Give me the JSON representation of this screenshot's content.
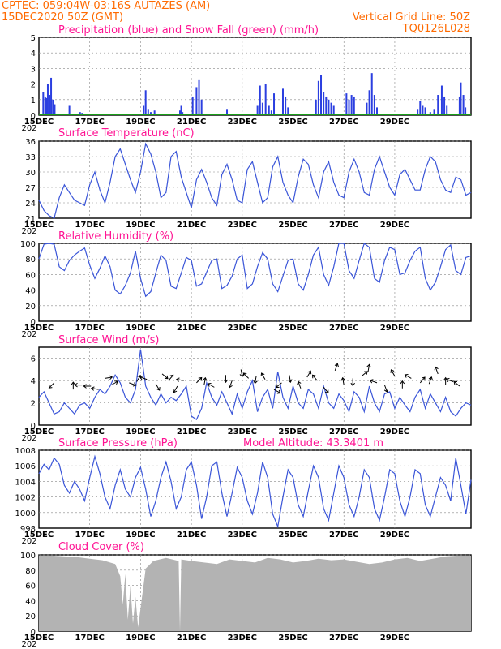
{
  "header": {
    "line1": "CPTEC:   059:04W-03:16S   AUTAZES (AM)",
    "line2": "15DEC2020 50Z (GMT)",
    "vertical_grid": "Vertical Grid Line: 50Z",
    "code": "TQ0126L028"
  },
  "x_axis": {
    "labels": [
      "15DEC",
      "17DEC",
      "19DEC",
      "21DEC",
      "23DEC",
      "25DEC",
      "27DEC",
      "29DEC"
    ],
    "year_stub": "202"
  },
  "chart_data": [
    {
      "type": "bar",
      "title": "Precipitation (blue) and Snow Fall (green) (mm/h)",
      "ylim": [
        0,
        5
      ],
      "yticks": [
        "0",
        "1",
        "2",
        "3",
        "4",
        "5"
      ],
      "colors": {
        "rain": "#2b3fe0",
        "snow": "#1a9e1a"
      },
      "x_days": [
        0.17,
        0.25,
        0.3,
        0.35,
        0.42,
        0.48,
        0.55,
        0.62,
        1.2,
        1.62,
        1.7,
        1.8,
        4.12,
        4.2,
        4.3,
        4.4,
        4.55,
        5.55,
        5.6,
        5.65,
        6.05,
        6.2,
        6.3,
        6.4,
        7.4,
        8.6,
        8.7,
        8.8,
        8.92,
        9.05,
        9.15,
        9.25,
        9.6,
        9.7,
        9.8,
        10.9,
        11.0,
        11.1,
        11.2,
        11.3,
        11.4,
        11.5,
        11.6,
        12.1,
        12.2,
        12.3,
        12.4,
        12.9,
        13.0,
        13.1,
        13.2,
        13.3,
        14.9,
        15.0,
        15.1,
        15.2,
        15.4,
        15.55,
        15.7,
        15.85,
        15.95,
        16.05,
        16.55,
        16.6,
        16.7,
        16.78
      ],
      "values": [
        1.5,
        1.2,
        1.1,
        2.0,
        1.3,
        2.4,
        1.0,
        0.7,
        0.6,
        0.2,
        0.15,
        0.1,
        0.6,
        1.6,
        0.4,
        0.2,
        0.3,
        0.3,
        0.6,
        0.2,
        1.2,
        1.8,
        2.3,
        1.0,
        0.4,
        0.6,
        1.9,
        0.8,
        2.0,
        0.6,
        0.3,
        1.4,
        1.7,
        1.2,
        0.5,
        1.0,
        2.2,
        2.6,
        1.5,
        1.2,
        1.0,
        0.8,
        0.6,
        1.4,
        1.0,
        1.3,
        1.2,
        0.8,
        1.6,
        2.7,
        1.3,
        0.5,
        0.4,
        0.9,
        0.6,
        0.5,
        0.2,
        0.4,
        1.3,
        1.9,
        1.2,
        0.6,
        1.2,
        2.1,
        1.3,
        0.5
      ],
      "snow_values": [
        0
      ]
    },
    {
      "type": "line",
      "title": "Surface Temperature (nC)",
      "ylim": [
        21,
        36
      ],
      "yticks": [
        "21",
        "24",
        "27",
        "30",
        "33",
        "36"
      ],
      "x_days": [
        0,
        0.2,
        0.4,
        0.6,
        0.8,
        1.0,
        1.2,
        1.4,
        1.6,
        1.8,
        2.0,
        2.2,
        2.4,
        2.6,
        2.8,
        3.0,
        3.2,
        3.4,
        3.6,
        3.8,
        4.0,
        4.2,
        4.4,
        4.6,
        4.8,
        5.0,
        5.2,
        5.4,
        5.6,
        5.8,
        6.0,
        6.2,
        6.4,
        6.6,
        6.8,
        7.0,
        7.2,
        7.4,
        7.6,
        7.8,
        8.0,
        8.2,
        8.4,
        8.6,
        8.8,
        9.0,
        9.2,
        9.4,
        9.6,
        9.8,
        10.0,
        10.2,
        10.4,
        10.6,
        10.8,
        11.0,
        11.2,
        11.4,
        11.6,
        11.8,
        12.0,
        12.2,
        12.4,
        12.6,
        12.8,
        13.0,
        13.2,
        13.4,
        13.6,
        13.8,
        14.0,
        14.2,
        14.4,
        14.6,
        14.8,
        15.0,
        15.2,
        15.4,
        15.6,
        15.8,
        16.0,
        16.2,
        16.4,
        16.6,
        16.8,
        17.0
      ],
      "values": [
        24.5,
        22.5,
        21.5,
        21.0,
        25.0,
        27.5,
        26.0,
        24.5,
        24.0,
        23.5,
        27.5,
        30.0,
        26.5,
        24.0,
        28.0,
        33.0,
        34.5,
        31.5,
        28.5,
        26.0,
        30.0,
        35.5,
        33.5,
        30.0,
        25.0,
        26.0,
        33.0,
        34.0,
        29.0,
        26.0,
        23.0,
        28.5,
        30.5,
        28.0,
        25.0,
        23.5,
        29.5,
        31.5,
        28.5,
        24.5,
        24.0,
        30.5,
        32.0,
        28.0,
        24.0,
        25.0,
        31.0,
        33.0,
        28.0,
        25.5,
        24.0,
        29.0,
        32.5,
        31.5,
        27.5,
        25.0,
        30.0,
        32.0,
        28.0,
        25.5,
        25.0,
        30.0,
        32.5,
        30.0,
        26.0,
        25.5,
        30.5,
        33.0,
        30.0,
        27.0,
        25.5,
        29.5,
        30.5,
        28.5,
        26.5,
        26.5,
        30.5,
        33.0,
        32.0,
        28.5,
        26.5,
        26.0,
        29.0,
        28.5,
        25.5,
        26.0
      ]
    },
    {
      "type": "line",
      "title": "Relative Humidity (%)",
      "ylim": [
        0,
        100
      ],
      "yticks": [
        "0",
        "20",
        "40",
        "60",
        "80",
        "100"
      ],
      "x_days": [
        0,
        0.2,
        0.4,
        0.6,
        0.8,
        1.0,
        1.2,
        1.4,
        1.6,
        1.8,
        2.0,
        2.2,
        2.4,
        2.6,
        2.8,
        3.0,
        3.2,
        3.4,
        3.6,
        3.8,
        4.0,
        4.2,
        4.4,
        4.6,
        4.8,
        5.0,
        5.2,
        5.4,
        5.6,
        5.8,
        6.0,
        6.2,
        6.4,
        6.6,
        6.8,
        7.0,
        7.2,
        7.4,
        7.6,
        7.8,
        8.0,
        8.2,
        8.4,
        8.6,
        8.8,
        9.0,
        9.2,
        9.4,
        9.6,
        9.8,
        10.0,
        10.2,
        10.4,
        10.6,
        10.8,
        11.0,
        11.2,
        11.4,
        11.6,
        11.8,
        12.0,
        12.2,
        12.4,
        12.6,
        12.8,
        13.0,
        13.2,
        13.4,
        13.6,
        13.8,
        14.0,
        14.2,
        14.4,
        14.6,
        14.8,
        15.0,
        15.2,
        15.4,
        15.6,
        15.8,
        16.0,
        16.2,
        16.4,
        16.6,
        16.8,
        17.0
      ],
      "values": [
        80,
        99,
        100,
        99,
        70,
        65,
        78,
        85,
        90,
        94,
        72,
        55,
        68,
        84,
        70,
        40,
        35,
        46,
        62,
        90,
        55,
        32,
        38,
        62,
        85,
        78,
        45,
        42,
        62,
        82,
        78,
        45,
        48,
        63,
        78,
        80,
        42,
        46,
        58,
        80,
        85,
        42,
        48,
        70,
        88,
        80,
        48,
        38,
        58,
        78,
        80,
        48,
        40,
        60,
        85,
        95,
        60,
        46,
        70,
        100,
        100,
        65,
        55,
        78,
        100,
        95,
        55,
        50,
        78,
        95,
        92,
        60,
        62,
        78,
        90,
        95,
        55,
        40,
        50,
        70,
        92,
        98,
        65,
        60,
        82,
        84
      ]
    },
    {
      "type": "line",
      "title": "Surface Wind (m/s)",
      "ylim": [
        0,
        7
      ],
      "yticks": [
        "0",
        "2",
        "4",
        "6"
      ],
      "x_days": [
        0,
        0.2,
        0.4,
        0.6,
        0.8,
        1.0,
        1.2,
        1.4,
        1.6,
        1.8,
        2.0,
        2.2,
        2.4,
        2.6,
        2.8,
        3.0,
        3.2,
        3.4,
        3.6,
        3.8,
        4.0,
        4.2,
        4.4,
        4.6,
        4.8,
        5.0,
        5.2,
        5.4,
        5.6,
        5.8,
        6.0,
        6.2,
        6.4,
        6.6,
        6.8,
        7.0,
        7.2,
        7.4,
        7.6,
        7.8,
        8.0,
        8.2,
        8.4,
        8.6,
        8.8,
        9.0,
        9.2,
        9.4,
        9.6,
        9.8,
        10.0,
        10.2,
        10.4,
        10.6,
        10.8,
        11.0,
        11.2,
        11.4,
        11.6,
        11.8,
        12.0,
        12.2,
        12.4,
        12.6,
        12.8,
        13.0,
        13.2,
        13.4,
        13.6,
        13.8,
        14.0,
        14.2,
        14.4,
        14.6,
        14.8,
        15.0,
        15.2,
        15.4,
        15.6,
        15.8,
        16.0,
        16.2,
        16.4,
        16.6,
        16.8,
        17.0
      ],
      "values": [
        2.5,
        3.0,
        2.0,
        1.0,
        1.2,
        2.0,
        1.5,
        1.0,
        1.8,
        2.0,
        1.5,
        2.5,
        3.2,
        2.8,
        3.5,
        4.5,
        3.8,
        2.5,
        2.0,
        3.2,
        6.8,
        3.5,
        2.5,
        1.8,
        2.8,
        2.0,
        2.5,
        2.2,
        2.8,
        3.5,
        0.8,
        0.5,
        1.5,
        3.8,
        2.5,
        1.8,
        3.0,
        2.0,
        1.0,
        2.8,
        1.5,
        3.0,
        4.0,
        1.2,
        2.5,
        3.2,
        1.5,
        4.8,
        2.5,
        1.5,
        3.5,
        2.0,
        1.5,
        3.2,
        2.8,
        1.5,
        3.5,
        2.0,
        1.5,
        2.8,
        2.2,
        1.2,
        3.0,
        2.5,
        1.2,
        3.5,
        2.0,
        1.2,
        2.8,
        3.0,
        1.5,
        2.5,
        1.8,
        1.2,
        2.5,
        3.2,
        1.5,
        2.8,
        2.0,
        1.2,
        2.5,
        1.2,
        0.8,
        1.5,
        2.0,
        1.8
      ],
      "arrows": {
        "x_days": [
          0.6,
          1.35,
          1.7,
          2.05,
          2.35,
          2.6,
          2.85,
          3.55,
          3.85,
          4.25,
          4.6,
          4.85,
          5.1,
          5.45,
          5.7,
          6.2,
          6.5,
          6.9,
          7.35,
          7.6,
          7.95,
          8.25,
          8.55,
          8.9,
          9.25,
          9.55,
          9.85,
          10.3,
          10.55,
          10.95,
          11.2,
          11.65,
          12.0,
          12.35,
          12.7,
          12.95,
          13.3,
          13.6,
          14.0,
          14.3,
          14.65,
          15.0,
          15.35,
          15.7,
          16.0,
          16.3,
          16.55
        ],
        "levels": [
          3.8,
          3.2,
          3.6,
          3.5,
          3.2,
          4.2,
          3.6,
          3.8,
          3.9,
          4.1,
          3.7,
          4.6,
          4.0,
          3.5,
          4.0,
          3.8,
          3.6,
          3.4,
          4.5,
          4.0,
          5.0,
          4.2,
          4.4,
          4.1,
          3.2,
          3.8,
          4.5,
          3.3,
          4.3,
          4.0,
          3.4,
          4.9,
          3.6,
          4.2,
          4.4,
          4.8,
          3.8,
          3.6,
          4.4,
          3.3,
          4.2,
          3.8,
          3.7,
          4.6,
          3.6,
          3.9,
          3.5
        ],
        "directions": [
          -135,
          90,
          180,
          180,
          170,
          10,
          30,
          -20,
          60,
          160,
          -60,
          -40,
          50,
          -120,
          170,
          45,
          80,
          150,
          -90,
          -110,
          -80,
          135,
          -100,
          120,
          -30,
          -140,
          -80,
          110,
          60,
          130,
          -50,
          70,
          100,
          -90,
          40,
          80,
          160,
          -70,
          120,
          90,
          150,
          50,
          70,
          110,
          90,
          160,
          140
        ]
      }
    },
    {
      "type": "line",
      "title": "Surface Pressure (hPa)",
      "annotation": "Model Altitude: 43.3401 m",
      "ylim": [
        998,
        1008
      ],
      "yticks": [
        "998",
        "1000",
        "1002",
        "1004",
        "1006",
        "1008"
      ],
      "x_days": [
        0,
        0.2,
        0.4,
        0.6,
        0.8,
        1.0,
        1.2,
        1.4,
        1.6,
        1.8,
        2.0,
        2.2,
        2.4,
        2.6,
        2.8,
        3.0,
        3.2,
        3.4,
        3.6,
        3.8,
        4.0,
        4.2,
        4.4,
        4.6,
        4.8,
        5.0,
        5.2,
        5.4,
        5.6,
        5.8,
        6.0,
        6.2,
        6.4,
        6.6,
        6.8,
        7.0,
        7.2,
        7.4,
        7.6,
        7.8,
        8.0,
        8.2,
        8.4,
        8.6,
        8.8,
        9.0,
        9.2,
        9.4,
        9.6,
        9.8,
        10.0,
        10.2,
        10.4,
        10.6,
        10.8,
        11.0,
        11.2,
        11.4,
        11.6,
        11.8,
        12.0,
        12.2,
        12.4,
        12.6,
        12.8,
        13.0,
        13.2,
        13.4,
        13.6,
        13.8,
        14.0,
        14.2,
        14.4,
        14.6,
        14.8,
        15.0,
        15.2,
        15.4,
        15.6,
        15.8,
        16.0,
        16.2,
        16.4,
        16.6,
        16.8,
        17.0
      ],
      "values": [
        1005,
        1006.2,
        1005.5,
        1007,
        1006.2,
        1003.5,
        1002.5,
        1004,
        1003,
        1001.5,
        1004.5,
        1007.2,
        1005,
        1002,
        1000.5,
        1003.5,
        1005.5,
        1003,
        1002,
        1004.5,
        1005.8,
        1003,
        999.5,
        1001.5,
        1004.5,
        1006.5,
        1004,
        1000.5,
        1002,
        1005.5,
        1006.5,
        1003.5,
        999.2,
        1002,
        1006,
        1006.5,
        1002.5,
        999.5,
        1002.5,
        1005.8,
        1004.5,
        1001.5,
        999.8,
        1002.5,
        1006.5,
        1004.5,
        999.8,
        998.2,
        1002,
        1005.5,
        1004.5,
        1001,
        999.5,
        1002.8,
        1006,
        1004.5,
        1000.5,
        999,
        1002.5,
        1006,
        1004.5,
        1001,
        999.5,
        1002,
        1005.5,
        1004.5,
        1000.5,
        999,
        1002,
        1005.5,
        1005,
        1001.5,
        999.5,
        1002,
        1005.5,
        1005,
        1001,
        999.5,
        1002,
        1004.5,
        1003.5,
        1001.5,
        1007,
        1003.5,
        999.8,
        1004.2
      ]
    },
    {
      "type": "area",
      "title": "Cloud Cover (%)",
      "ylim": [
        0,
        100
      ],
      "yticks": [
        "0",
        "20",
        "40",
        "60",
        "80",
        "100"
      ],
      "colors": {
        "fill": "#b3b3b3"
      },
      "x_days": [
        0,
        0.5,
        1.0,
        1.5,
        2.0,
        2.5,
        2.8,
        3.0,
        3.1,
        3.2,
        3.3,
        3.4,
        3.5,
        3.6,
        3.7,
        3.8,
        3.9,
        4.0,
        4.2,
        4.5,
        5.0,
        5.5,
        5.55,
        5.6,
        6.0,
        6.5,
        7.0,
        7.5,
        8.0,
        8.5,
        9.0,
        9.5,
        10.0,
        10.5,
        11.0,
        11.5,
        12.0,
        12.5,
        13.0,
        13.5,
        14.0,
        14.5,
        15.0,
        15.5,
        16.0,
        16.5,
        17.0
      ],
      "values": [
        99,
        99,
        98,
        97,
        95,
        93,
        90,
        88,
        80,
        72,
        35,
        75,
        15,
        60,
        10,
        45,
        5,
        30,
        82,
        92,
        96,
        92,
        0,
        94,
        92,
        90,
        88,
        94,
        92,
        90,
        96,
        94,
        90,
        92,
        95,
        93,
        94,
        91,
        88,
        90,
        94,
        96,
        92,
        95,
        98,
        99,
        99
      ]
    }
  ]
}
